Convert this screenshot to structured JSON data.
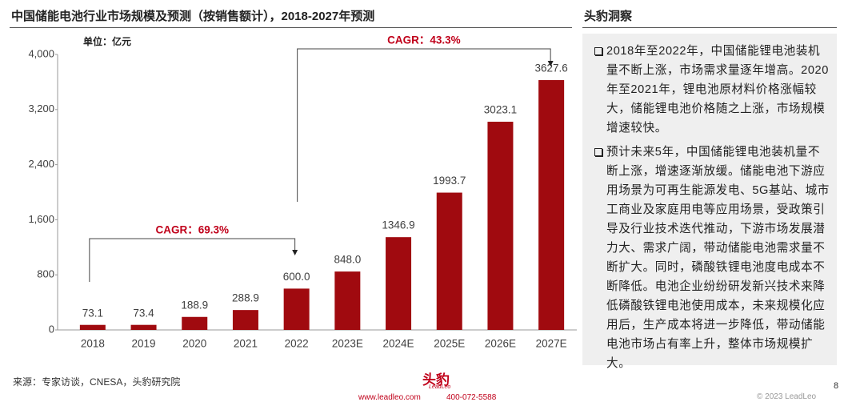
{
  "chart_data": {
    "type": "bar",
    "title": "中国储能电池行业市场规模及预测（按销售额计），2018-2027年预测",
    "y_unit_label": "单位：亿元",
    "categories": [
      "2018",
      "2019",
      "2020",
      "2021",
      "2022",
      "2023E",
      "2024E",
      "2025E",
      "2026E",
      "2027E"
    ],
    "values": [
      73.1,
      73.4,
      188.9,
      288.9,
      600,
      848,
      1346.9,
      1993.7,
      3023.1,
      3627.6
    ],
    "value_labels": [
      "73.1",
      "73.4",
      "188.9",
      "288.9",
      "600.0",
      "848.0",
      "1346.9",
      "1993.7",
      "3023.1",
      "3627.6"
    ],
    "color": "#a00a0f",
    "ylim": [
      0,
      4000
    ],
    "yticks": [
      0,
      800,
      {
        "value": 1600,
        "label": "1,600"
      },
      {
        "value": 2400,
        "label": "2,400"
      },
      {
        "value": 3200,
        "label": "3,200"
      },
      {
        "value": 4000,
        "label": "4,000"
      }
    ],
    "grid": false,
    "annotations": [
      {
        "text": "CAGR：69.3%"
      },
      {
        "text": "CAGR：43.3%"
      }
    ]
  },
  "insight": {
    "title": "头豹洞察",
    "bullets": [
      "2018年至2022年，中国储能锂电池装机量不断上涨，市场需求量逐年增高。2020年至2021年，锂电池原材料价格涨幅较大，储能锂电池价格随之上涨，市场规模增速较快。",
      "预计未来5年，中国储能锂电池装机量不断上涨，增速逐渐放缓。储能电池下游应用场景为可再生能源发电、5G基站、城市工商业及家庭用电等应用场景，受政策引导及行业技术迭代推动，下游市场发展潜力大、需求广阔，带动储能电池需求量不断扩大。同时，磷酸铁锂电池度电成本不断降低。电池企业纷纷研发新兴技术来降低磷酸铁锂电池使用成本，未来规模化应用后，生产成本将进一步降低，带动储能电池市场占有率上升，整体市场规模扩大。"
    ]
  },
  "footer": {
    "source": "来源：专家访谈，CNESA，头豹研究院",
    "logo": "头豹",
    "logo_sub": "LeadLeo",
    "website": "www.leadleo.com",
    "phone": "400-072-5588",
    "copyright": "© 2023 LeadLeo",
    "page": "8"
  }
}
